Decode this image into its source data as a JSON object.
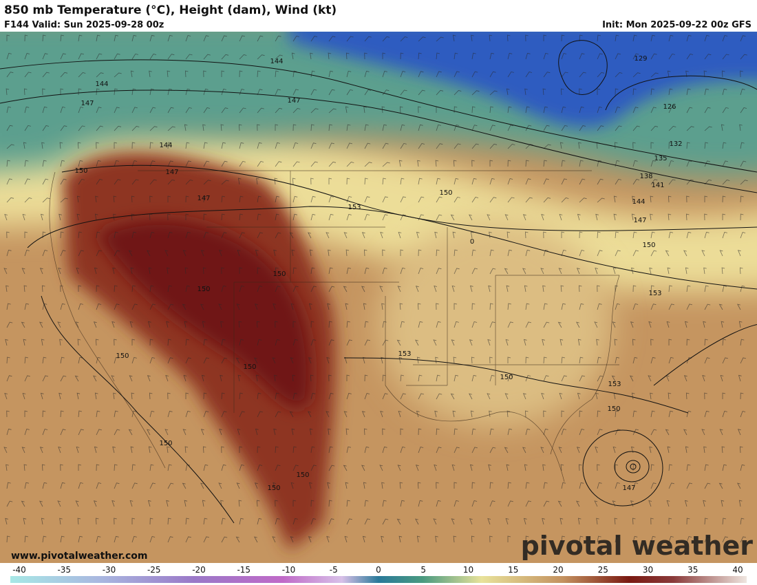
{
  "header": {
    "title": "850 mb Temperature (°C), Height (dam), Wind (kt)",
    "valid": "F144 Valid: Sun 2025-09-28 00z",
    "init": "Init: Mon 2025-09-22 00z GFS"
  },
  "map": {
    "contour_labels": [
      "144",
      "144",
      "147",
      "147",
      "144",
      "150",
      "147",
      "147",
      "153",
      "150",
      "0",
      "150",
      "150",
      "153",
      "150",
      "150",
      "150",
      "153",
      "150",
      "150",
      "150",
      "150",
      "147",
      "129",
      "126",
      "132",
      "135",
      "138",
      "141",
      "144",
      "147",
      "150",
      "153"
    ]
  },
  "colorbar": {
    "ticks": [
      -40,
      -35,
      -30,
      -25,
      -20,
      -15,
      -10,
      -5,
      0,
      5,
      10,
      15,
      20,
      25,
      30,
      35,
      40
    ]
  },
  "footer": {
    "website": "www.pivotalweather.com",
    "logo": "pivotal weather"
  }
}
